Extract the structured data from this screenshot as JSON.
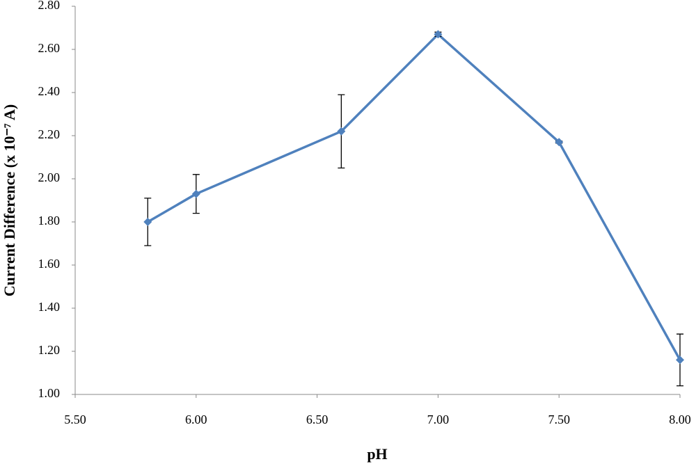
{
  "chart_data": {
    "type": "line",
    "x_label": "pH",
    "y_label": "Current Difference (x 10⁻⁷ A)",
    "x": [
      5.8,
      6.0,
      6.6,
      7.0,
      7.5,
      8.0
    ],
    "values": [
      1.8,
      1.93,
      2.22,
      2.67,
      2.17,
      1.16
    ],
    "errors": [
      0.11,
      0.09,
      0.17,
      0.01,
      0.005,
      0.12
    ],
    "color": "#4f81bd",
    "xlim": [
      5.5,
      8.0
    ],
    "xticks": [
      {
        "value": 5.5,
        "label": "5.50"
      },
      {
        "value": 6.0,
        "label": "6.00"
      },
      {
        "value": 6.5,
        "label": "6.50"
      },
      {
        "value": 7.0,
        "label": "7.00"
      },
      {
        "value": 7.5,
        "label": "7.50"
      },
      {
        "value": 8.0,
        "label": "8.00"
      }
    ],
    "ylim": [
      1.0,
      2.8
    ],
    "yticks": [
      {
        "value": 1.0,
        "label": "1.00"
      },
      {
        "value": 1.2,
        "label": "1.20"
      },
      {
        "value": 1.4,
        "label": "1.40"
      },
      {
        "value": 1.6,
        "label": "1.60"
      },
      {
        "value": 1.8,
        "label": "1.80"
      },
      {
        "value": 2.0,
        "label": "2.00"
      },
      {
        "value": 2.2,
        "label": "2.20"
      },
      {
        "value": 2.4,
        "label": "2.40"
      },
      {
        "value": 2.6,
        "label": "2.60"
      },
      {
        "value": 2.8,
        "label": "2.80"
      }
    ],
    "grid": false
  }
}
